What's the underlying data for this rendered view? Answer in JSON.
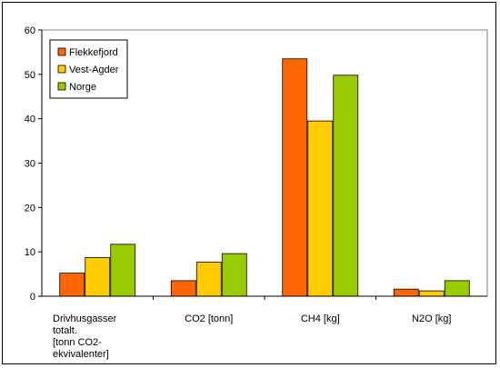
{
  "chart_data": {
    "type": "bar",
    "categories": [
      [
        "Drivhusgasser",
        "totalt.",
        "[tonn CO2-",
        "ekvivalenter]"
      ],
      [
        "CO2 [tonn]"
      ],
      [
        "CH4 [kg]"
      ],
      [
        "N2O [kg]"
      ]
    ],
    "series": [
      {
        "name": "Flekkefjord",
        "color": "#ff6600",
        "values": [
          5.2,
          3.5,
          53.5,
          1.6
        ]
      },
      {
        "name": "Vest-Agder",
        "color": "#ffcc00",
        "values": [
          8.7,
          7.7,
          39.5,
          1.2
        ]
      },
      {
        "name": "Norge",
        "color": "#99cc00",
        "values": [
          11.7,
          9.6,
          49.8,
          3.5
        ]
      }
    ],
    "ylim": [
      0,
      60
    ],
    "yticks": [
      0,
      10,
      20,
      30,
      40,
      50,
      60
    ],
    "grid": false,
    "legend": "top-left"
  }
}
